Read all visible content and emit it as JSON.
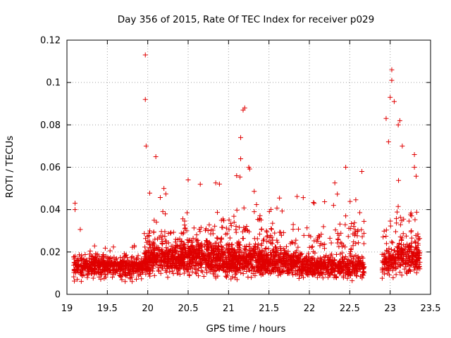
{
  "chart_data": {
    "type": "scatter",
    "title": "Day 356 of 2015, Rate Of TEC Index for receiver p029",
    "xlabel": "GPS time / hours",
    "ylabel": "ROTI / TECUs",
    "xlim": [
      19,
      23.5
    ],
    "ylim": [
      0,
      0.12
    ],
    "xticks": [
      "19",
      "19.5",
      "20",
      "20.5",
      "21",
      "21.5",
      "22",
      "22.5",
      "23",
      "23.5"
    ],
    "yticks": [
      "0",
      "0.02",
      "0.04",
      "0.06",
      "0.08",
      "0.1",
      "0.12"
    ],
    "grid": true,
    "marker": "+",
    "color": "#e00000",
    "series": [
      {
        "name": "ROTI",
        "notable_points": [
          {
            "x": 19.1,
            "y": 0.043
          },
          {
            "x": 19.1,
            "y": 0.04
          },
          {
            "x": 19.97,
            "y": 0.113
          },
          {
            "x": 19.97,
            "y": 0.092
          },
          {
            "x": 19.98,
            "y": 0.07
          },
          {
            "x": 20.1,
            "y": 0.065
          },
          {
            "x": 20.2,
            "y": 0.05
          },
          {
            "x": 20.5,
            "y": 0.054
          },
          {
            "x": 20.65,
            "y": 0.052
          },
          {
            "x": 21.15,
            "y": 0.064
          },
          {
            "x": 21.18,
            "y": 0.087
          },
          {
            "x": 21.2,
            "y": 0.088
          },
          {
            "x": 21.15,
            "y": 0.074
          },
          {
            "x": 21.25,
            "y": 0.06
          },
          {
            "x": 21.1,
            "y": 0.056
          },
          {
            "x": 22.45,
            "y": 0.06
          },
          {
            "x": 22.65,
            "y": 0.058
          },
          {
            "x": 22.95,
            "y": 0.083
          },
          {
            "x": 22.98,
            "y": 0.072
          },
          {
            "x": 23.0,
            "y": 0.093
          },
          {
            "x": 23.02,
            "y": 0.101
          },
          {
            "x": 23.02,
            "y": 0.106
          },
          {
            "x": 23.05,
            "y": 0.091
          },
          {
            "x": 23.1,
            "y": 0.08
          },
          {
            "x": 23.12,
            "y": 0.082
          },
          {
            "x": 23.15,
            "y": 0.07
          },
          {
            "x": 23.3,
            "y": 0.066
          },
          {
            "x": 23.3,
            "y": 0.06
          }
        ],
        "clusters": [
          {
            "x_range": [
              19.08,
              19.45
            ],
            "y_low": 0.005,
            "y_mid": 0.013,
            "y_high": 0.032,
            "density": 1.0
          },
          {
            "x_range": [
              19.45,
              19.95
            ],
            "y_low": 0.005,
            "y_mid": 0.013,
            "y_high": 0.025,
            "density": 1.0
          },
          {
            "x_range": [
              19.95,
              20.4
            ],
            "y_low": 0.006,
            "y_mid": 0.016,
            "y_high": 0.05,
            "density": 1.3
          },
          {
            "x_range": [
              20.4,
              20.9
            ],
            "y_low": 0.006,
            "y_mid": 0.017,
            "y_high": 0.055,
            "density": 1.4
          },
          {
            "x_range": [
              20.9,
              21.4
            ],
            "y_low": 0.006,
            "y_mid": 0.016,
            "y_high": 0.06,
            "density": 1.4
          },
          {
            "x_range": [
              21.4,
              21.9
            ],
            "y_low": 0.006,
            "y_mid": 0.015,
            "y_high": 0.052,
            "density": 1.3
          },
          {
            "x_range": [
              21.9,
              22.3
            ],
            "y_low": 0.006,
            "y_mid": 0.013,
            "y_high": 0.048,
            "density": 1.1
          },
          {
            "x_range": [
              22.3,
              22.68
            ],
            "y_low": 0.005,
            "y_mid": 0.013,
            "y_high": 0.058,
            "density": 1.1
          },
          {
            "x_range": [
              22.9,
              23.08
            ],
            "y_low": 0.007,
            "y_mid": 0.015,
            "y_high": 0.06,
            "density": 1.0
          },
          {
            "x_range": [
              23.08,
              23.37
            ],
            "y_low": 0.007,
            "y_mid": 0.018,
            "y_high": 0.065,
            "density": 1.2
          }
        ]
      }
    ]
  }
}
